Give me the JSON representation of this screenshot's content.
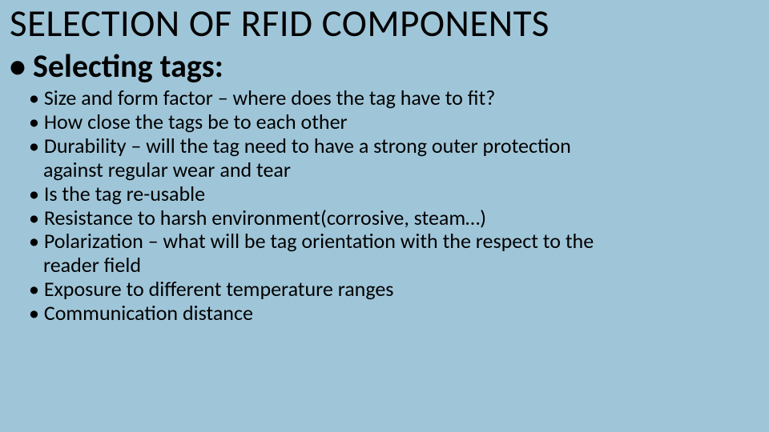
{
  "slide": {
    "background_color": "#9fc5d8",
    "text_color": "#000000",
    "title": "SELECTION OF RFID COMPONENTS",
    "title_fontsize": 47,
    "section_heading": "Selecting tags:",
    "section_fontsize": 40,
    "bullet_fontsize": 26,
    "bullets": [
      {
        "line1": "Size and form factor – where does the tag have to fit?"
      },
      {
        "line1": "How close the tags be to each other"
      },
      {
        "line1": "Durability – will the tag need to have a strong outer protection",
        "line2": "against regular wear and tear"
      },
      {
        "line1": "Is the tag re-usable"
      },
      {
        "line1": "Resistance to harsh environment(corrosive, steam…)"
      },
      {
        "line1": "Polarization – what will be tag orientation with the respect to the",
        "line2": "reader field"
      },
      {
        "line1": "Exposure to different temperature ranges"
      },
      {
        "line1": "Communication distance"
      }
    ]
  }
}
